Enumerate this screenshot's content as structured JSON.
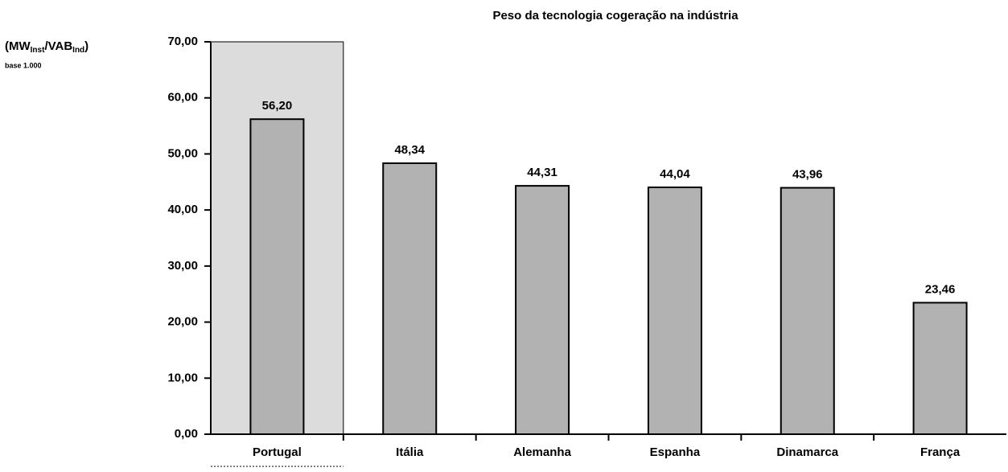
{
  "chart_data": {
    "type": "bar",
    "title": "Peso da tecnologia cogeração na indústria",
    "ylabel": [
      "(MW",
      "Inst",
      "/VAB",
      "Ind",
      ")"
    ],
    "ylabel_note": "base 1.000",
    "categories": [
      "Portugal",
      "Itália",
      "Alemanha",
      "Espanha",
      "Dinamarca",
      "França"
    ],
    "values": [
      56.2,
      48.34,
      44.31,
      44.04,
      43.96,
      23.46
    ],
    "value_labels": [
      "56,20",
      "48,34",
      "44,31",
      "44,04",
      "43,96",
      "23,46"
    ],
    "color": "#b2b2b2",
    "highlight": "Portugal",
    "highlight_color": "#dcdcdc",
    "ylim": [
      0,
      70
    ],
    "yticks": [
      {
        "value": 0,
        "label": "0,00"
      },
      {
        "value": 10,
        "label": "10,00"
      },
      {
        "value": 20,
        "label": "20,00"
      },
      {
        "value": 30,
        "label": "30,00"
      },
      {
        "value": 40,
        "label": "40,00"
      },
      {
        "value": 50,
        "label": "50,00"
      },
      {
        "value": 60,
        "label": "60,00"
      },
      {
        "value": 70,
        "label": "70,00"
      }
    ],
    "grid": false
  }
}
